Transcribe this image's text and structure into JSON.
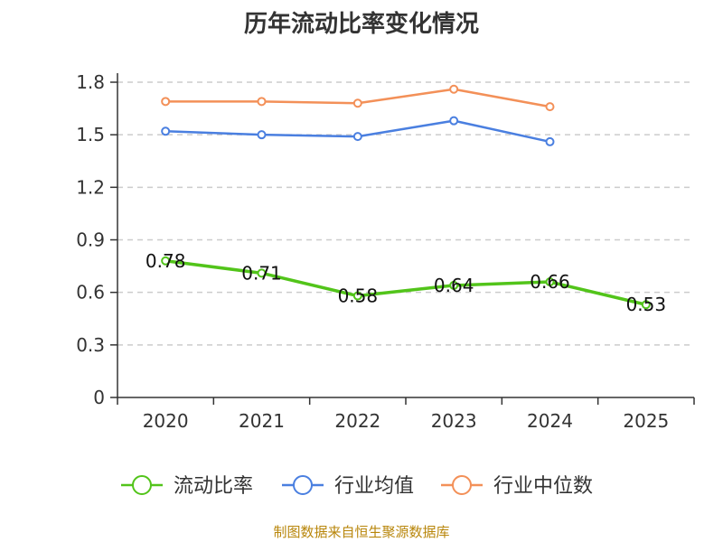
{
  "chart_data": {
    "type": "line",
    "title": "历年流动比率变化情况",
    "categories": [
      "2020",
      "2021",
      "2022",
      "2023",
      "2024",
      "2025"
    ],
    "series": [
      {
        "name": "流动比率",
        "color": "#52c41a",
        "values": [
          0.78,
          0.71,
          0.58,
          0.64,
          0.66,
          0.53
        ],
        "data_labels": [
          "0.78",
          "0.71",
          "0.58",
          "0.64",
          "0.66",
          "0.53"
        ]
      },
      {
        "name": "行业均值",
        "color": "#4a7fe0",
        "values": [
          1.52,
          1.5,
          1.49,
          1.58,
          1.46,
          null
        ]
      },
      {
        "name": "行业中位数",
        "color": "#f39058",
        "values": [
          1.69,
          1.69,
          1.68,
          1.76,
          1.66,
          null
        ]
      }
    ],
    "y_ticks": [
      "0",
      "0.3",
      "0.6",
      "0.9",
      "1.2",
      "1.5",
      "1.8"
    ],
    "ylim": [
      0,
      1.8
    ],
    "grid": true,
    "legend_position": "bottom"
  },
  "source_text": "制图数据来自恒生聚源数据库"
}
